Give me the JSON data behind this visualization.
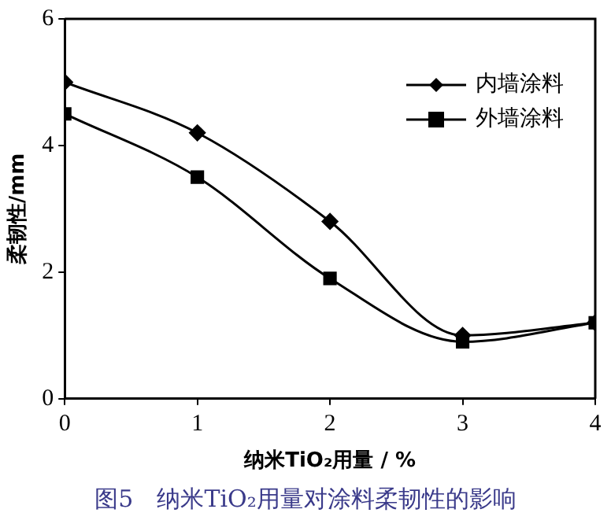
{
  "chart_data": {
    "type": "line",
    "xlabel": "纳米TiO₂用量 / %",
    "ylabel": "柔韧性/mm",
    "x": [
      0,
      1,
      2,
      3,
      4
    ],
    "xlim": [
      0,
      4
    ],
    "xticks": [
      0,
      1,
      2,
      3,
      4
    ],
    "ylim": [
      0,
      6
    ],
    "yticks": [
      0,
      2,
      4,
      6
    ],
    "series": [
      {
        "name": "内墙涂料",
        "color": "#000000",
        "marker": "diamond",
        "values": [
          5.0,
          4.2,
          2.8,
          1.0,
          1.2
        ]
      },
      {
        "name": "外墙涂料",
        "color": "#000000",
        "marker": "square",
        "values": [
          4.5,
          3.5,
          1.9,
          0.9,
          1.2
        ]
      }
    ],
    "legend": "top right",
    "grid": false,
    "line_style": "solid",
    "annotations": [
      "图5　纳米TiO₂用量对涂料柔韧性的影响"
    ]
  }
}
